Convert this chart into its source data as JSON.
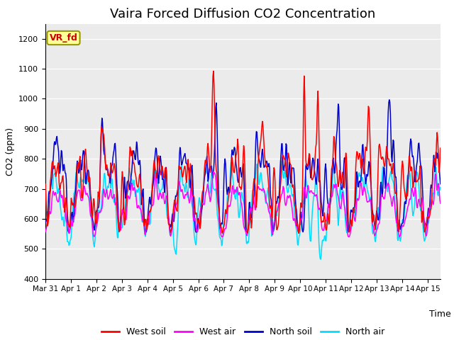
{
  "title": "Vaira Forced Diffusion CO2 Concentration",
  "xlabel": "Time",
  "ylabel": "CO2 (ppm)",
  "ylim": [
    400,
    1250
  ],
  "xlim_days": 15.5,
  "tick_labels": [
    "Mar 31",
    "Apr 1",
    "Apr 2",
    "Apr 3",
    "Apr 4",
    "Apr 5",
    "Apr 6",
    "Apr 7",
    "Apr 8",
    "Apr 9",
    "Apr 10",
    "Apr 11",
    "Apr 12",
    "Apr 13",
    "Apr 14",
    "Apr 15"
  ],
  "colors": {
    "west_soil": "#ff0000",
    "west_air": "#ff00ff",
    "north_soil": "#0000cc",
    "north_air": "#00ddff"
  },
  "legend_labels": [
    "West soil",
    "West air",
    "North soil",
    "North air"
  ],
  "annotation_text": "VR_fd",
  "annotation_bg": "#ffff99",
  "annotation_border": "#aaaa00",
  "annotation_text_color": "#cc0000",
  "bg_color": "#ebebeb",
  "linewidth": 1.1,
  "title_fontsize": 13,
  "axis_label_fontsize": 9,
  "legend_fontsize": 9,
  "annotation_fontsize": 9,
  "n_points": 720
}
